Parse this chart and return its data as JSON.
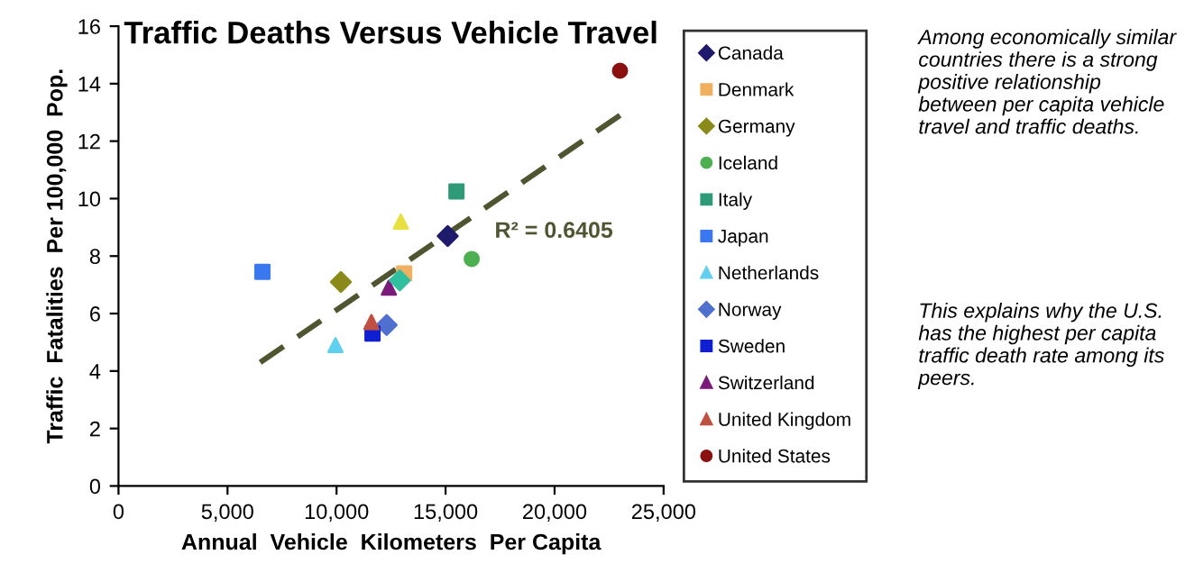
{
  "chart_data": {
    "type": "scatter",
    "title": "Traffic Deaths Versus Vehicle Travel",
    "xlabel": "Annual  Vehicle  Kilometers  Per Capita",
    "ylabel": "Traffic  Fatalities  Per 100,000  Pop.",
    "xlim": [
      0,
      25000
    ],
    "ylim": [
      0,
      16
    ],
    "xticks": [
      {
        "value": 0,
        "label": "0"
      },
      {
        "value": 5000,
        "label": "5,000"
      },
      {
        "value": 10000,
        "label": "10,000"
      },
      {
        "value": 15000,
        "label": "15,000"
      },
      {
        "value": 20000,
        "label": "20,000"
      },
      {
        "value": 25000,
        "label": "25,000"
      }
    ],
    "yticks": [
      0,
      2,
      4,
      6,
      8,
      10,
      12,
      14,
      16
    ],
    "grid": false,
    "legend": "right",
    "series": [
      {
        "name": "Canada",
        "color": "#1f1a6b",
        "marker": "diamond",
        "x": [
          15100
        ],
        "values": [
          8.7
        ]
      },
      {
        "name": "Denmark",
        "color": "#f0b060",
        "marker": "square",
        "x": [
          13100
        ],
        "values": [
          7.4
        ]
      },
      {
        "name": "Germany",
        "color": "#8a8a1a",
        "marker": "diamond",
        "x": [
          10200
        ],
        "values": [
          7.1
        ]
      },
      {
        "name": "Iceland",
        "color": "#4caf50",
        "marker": "circle",
        "x": [
          16200
        ],
        "values": [
          7.9
        ]
      },
      {
        "name": "Italy",
        "color": "#2e9a78",
        "marker": "square",
        "x": [
          15500
        ],
        "values": [
          10.25
        ]
      },
      {
        "name": "Japan",
        "color": "#3a78f0",
        "marker": "square",
        "x": [
          6600
        ],
        "values": [
          7.45
        ]
      },
      {
        "name": "Netherlands",
        "color": "#60d0f0",
        "marker": "triangle",
        "x": [
          9950
        ],
        "values": [
          4.9
        ]
      },
      {
        "name": "Norway",
        "color": "#5070d0",
        "marker": "diamond",
        "x": [
          12300
        ],
        "values": [
          5.6
        ]
      },
      {
        "name": "Sweden",
        "color": "#1020d0",
        "marker": "square",
        "x": [
          11650
        ],
        "values": [
          5.3
        ]
      },
      {
        "name": "Switzerland",
        "color": "#7a1a7a",
        "marker": "triangle",
        "x": [
          12400
        ],
        "values": [
          6.9
        ]
      },
      {
        "name": "United Kingdom",
        "color": "#c05040",
        "marker": "triangle",
        "x": [
          11600
        ],
        "values": [
          5.7
        ]
      },
      {
        "name": "United States",
        "color": "#8b1010",
        "marker": "circle",
        "x": [
          23000
        ],
        "values": [
          14.45
        ]
      },
      {
        "color": "#e8e040",
        "marker": "triangle",
        "x": [
          12950
        ],
        "values": [
          9.2
        ]
      },
      {
        "color": "#30c0a0",
        "marker": "diamond",
        "x": [
          12900
        ],
        "values": [
          7.15
        ]
      },
      {
        "type": "line",
        "color": "#4f5530",
        "line_style": "dashed",
        "marker": "none",
        "x": [
          6500,
          23000
        ],
        "values": [
          4.3,
          12.9
        ]
      }
    ],
    "annotations": [
      "R² = 0.6405",
      "Among economically similar countries there is a strong positive relationship between per capita vehicle travel and traffic deaths.",
      "This explains why the U.S. has the highest per capita traffic death rate among its peers."
    ]
  }
}
